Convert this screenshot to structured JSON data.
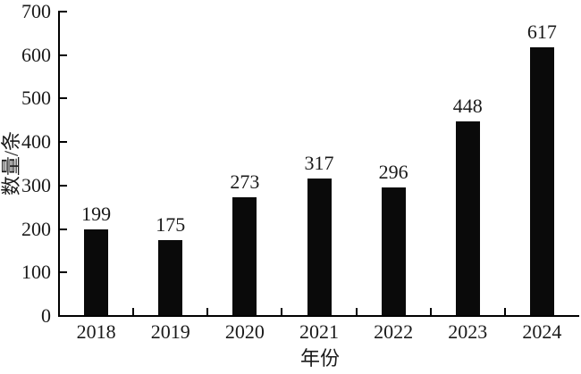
{
  "chart_data": {
    "type": "bar",
    "title": "",
    "categories": [
      "2018",
      "2019",
      "2020",
      "2021",
      "2022",
      "2023",
      "2024"
    ],
    "values": [
      199,
      175,
      273,
      317,
      296,
      448,
      617
    ],
    "xlabel": "年份",
    "ylabel": "数量/条",
    "ylim": [
      0,
      700
    ],
    "yticks": [
      0,
      100,
      200,
      300,
      400,
      500,
      600,
      700
    ],
    "grid": false,
    "legend": "none",
    "value_labels_shown": true,
    "bar_color": "#0a0a0a",
    "axis_color": "#000000",
    "text_color": "#1a1a1a",
    "background_color": "#ffffff"
  }
}
